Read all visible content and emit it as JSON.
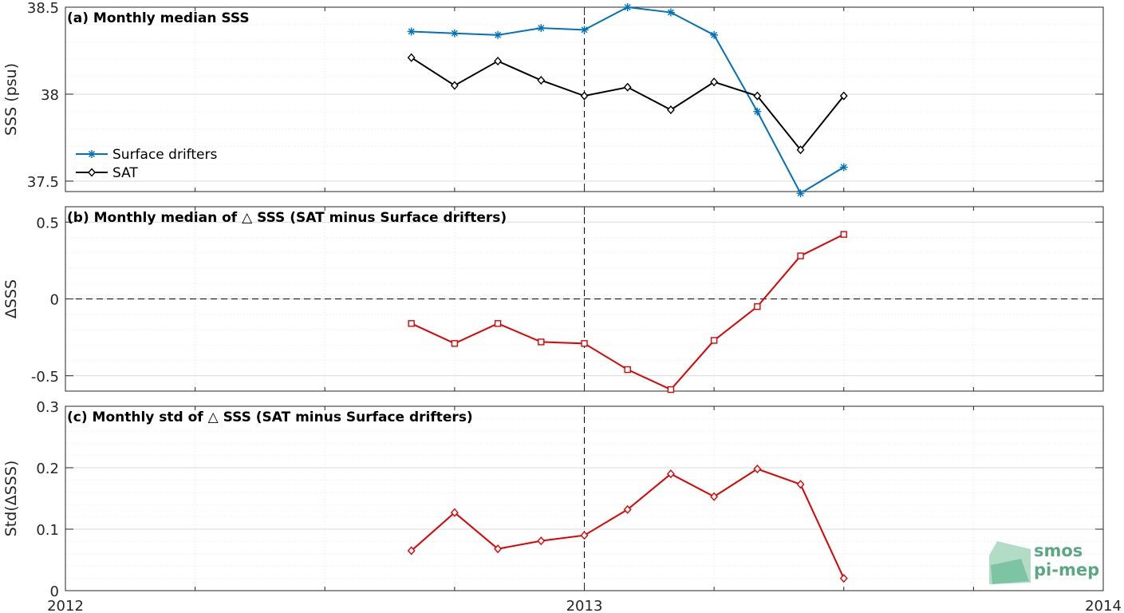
{
  "colors": {
    "drifters": "#0072BD",
    "sat": "#000000",
    "delta": "#E00000",
    "grid_major": "#d9d9d9",
    "grid_minor": "#e6e6e6",
    "logo": "#5aa882"
  },
  "x_axis": {
    "tick_labels": [
      "2012",
      "2013",
      "2014"
    ],
    "range": [
      "2012-01",
      "2014-01"
    ]
  },
  "logo": {
    "line1": "smos",
    "line2": "pi-mep"
  },
  "chart_data": [
    {
      "type": "line",
      "panel_title": "(a) Monthly median SSS",
      "ylabel": "SSS (psu)",
      "ylim": [
        37.44,
        38.5
      ],
      "yticks": [
        37.5,
        38,
        38.5
      ],
      "ytick_labels": [
        "37.5",
        "38",
        "38.5"
      ],
      "grid": true,
      "legend": {
        "placement": "lower-left",
        "entries": [
          "Surface drifters",
          "SAT"
        ]
      },
      "x": [
        "2012-09",
        "2012-10",
        "2012-11",
        "2012-12",
        "2013-01",
        "2013-02",
        "2013-03",
        "2013-04",
        "2013-05",
        "2013-06",
        "2013-07"
      ],
      "series": [
        {
          "name": "Surface drifters",
          "marker": "asterisk",
          "values": [
            38.36,
            38.35,
            38.34,
            38.38,
            38.37,
            38.5,
            38.47,
            38.34,
            37.9,
            37.43,
            37.58
          ]
        },
        {
          "name": "SAT",
          "marker": "diamond",
          "values": [
            38.21,
            38.05,
            38.19,
            38.08,
            37.99,
            38.04,
            37.91,
            38.07,
            37.99,
            37.68,
            37.99
          ]
        }
      ]
    },
    {
      "type": "line",
      "panel_title": "(b) Monthly median of △ SSS (SAT minus Surface drifters)",
      "ylabel": "ΔSSS",
      "ylim": [
        -0.6,
        0.6
      ],
      "yticks": [
        -0.5,
        0,
        0.5
      ],
      "ytick_labels": [
        "-0.5",
        "0",
        "0.5"
      ],
      "grid": true,
      "zero_line": true,
      "x": [
        "2012-09",
        "2012-10",
        "2012-11",
        "2012-12",
        "2013-01",
        "2013-02",
        "2013-03",
        "2013-04",
        "2013-05",
        "2013-06",
        "2013-07"
      ],
      "series": [
        {
          "marker": "square",
          "values": [
            -0.16,
            -0.29,
            -0.16,
            -0.28,
            -0.29,
            -0.46,
            -0.59,
            -0.27,
            -0.05,
            0.28,
            0.42
          ]
        }
      ]
    },
    {
      "type": "line",
      "panel_title": "(c) Monthly std of △ SSS (SAT minus Surface drifters)",
      "ylabel": "Std(ΔSSS)",
      "ylim": [
        0,
        0.3
      ],
      "yticks": [
        0,
        0.1,
        0.2,
        0.3
      ],
      "ytick_labels": [
        "0",
        "0.1",
        "0.2",
        "0.3"
      ],
      "grid": true,
      "x": [
        "2012-09",
        "2012-10",
        "2012-11",
        "2012-12",
        "2013-01",
        "2013-02",
        "2013-03",
        "2013-04",
        "2013-05",
        "2013-06",
        "2013-07"
      ],
      "series": [
        {
          "marker": "diamond",
          "values": [
            0.065,
            0.127,
            0.068,
            0.081,
            0.09,
            0.132,
            0.19,
            0.153,
            0.198,
            0.173,
            0.02
          ]
        }
      ]
    }
  ]
}
